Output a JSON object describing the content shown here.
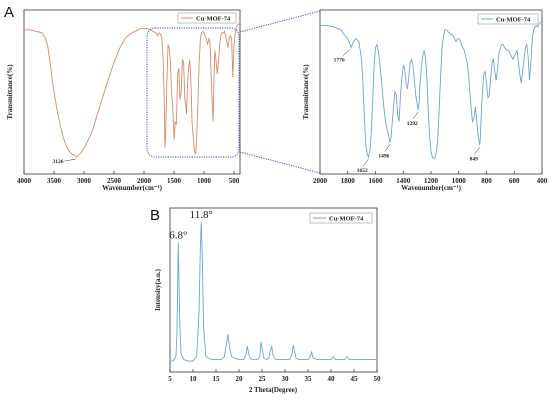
{
  "panels": {
    "a_label": "A",
    "b_label": "B"
  },
  "chart_data": [
    {
      "id": "ftir_full",
      "type": "line",
      "xlabel": "Wavenumber(cm⁻¹)",
      "ylabel": "Transmittance(%)",
      "xlim": [
        4000,
        400
      ],
      "x_reversed": true,
      "xticks": [
        4000,
        3500,
        3000,
        2500,
        2000,
        1500,
        1000,
        500
      ],
      "ylim": [
        0,
        100
      ],
      "grid": false,
      "legend": "top-right",
      "series": [
        {
          "name": "Cu-MOF-74",
          "color": "#d98a6a",
          "x": [
            4000,
            3900,
            3800,
            3700,
            3650,
            3600,
            3550,
            3500,
            3450,
            3400,
            3350,
            3300,
            3250,
            3200,
            3150,
            3126,
            3100,
            3050,
            3000,
            2950,
            2900,
            2850,
            2800,
            2700,
            2600,
            2500,
            2400,
            2300,
            2200,
            2100,
            2050,
            2000,
            1950,
            1900,
            1850,
            1800,
            1776,
            1750,
            1720,
            1700,
            1680,
            1660,
            1652,
            1640,
            1620,
            1600,
            1580,
            1560,
            1540,
            1520,
            1500,
            1496,
            1480,
            1460,
            1440,
            1420,
            1400,
            1380,
            1360,
            1340,
            1320,
            1300,
            1292,
            1280,
            1260,
            1240,
            1220,
            1200,
            1180,
            1160,
            1140,
            1120,
            1100,
            1080,
            1060,
            1040,
            1020,
            1000,
            980,
            960,
            940,
            920,
            900,
            880,
            860,
            849,
            840,
            820,
            800,
            780,
            760,
            740,
            720,
            700,
            680,
            660,
            640,
            620,
            600,
            580,
            560,
            540,
            520,
            500,
            480,
            460,
            440,
            420,
            400
          ],
          "y": [
            92,
            92,
            91,
            90,
            87,
            80,
            65,
            50,
            38,
            28,
            20,
            14,
            10,
            8,
            7,
            6,
            7,
            9,
            12,
            16,
            20,
            25,
            32,
            45,
            58,
            70,
            80,
            87,
            90,
            92,
            93,
            93,
            93,
            92,
            91,
            90,
            88,
            90,
            89,
            86,
            70,
            40,
            12,
            20,
            55,
            82,
            80,
            70,
            50,
            38,
            20,
            18,
            30,
            28,
            62,
            66,
            45,
            50,
            72,
            70,
            45,
            40,
            35,
            50,
            65,
            72,
            60,
            30,
            20,
            10,
            8,
            20,
            45,
            70,
            86,
            90,
            91,
            90,
            88,
            86,
            82,
            86,
            84,
            60,
            40,
            30,
            48,
            78,
            72,
            62,
            70,
            82,
            88,
            90,
            90,
            91,
            88,
            84,
            80,
            86,
            88,
            86,
            60,
            82,
            90,
            94,
            95,
            96,
            96
          ]
        }
      ],
      "annotations": [
        {
          "text": "3126",
          "x": 3126,
          "y": 6
        }
      ]
    },
    {
      "id": "ftir_zoom",
      "type": "line",
      "xlabel": "Wavenumber(cm⁻¹)",
      "ylabel": "Transmittance(%)",
      "xlim": [
        2000,
        400
      ],
      "x_reversed": true,
      "xticks": [
        2000,
        1800,
        1600,
        1400,
        1200,
        1000,
        800,
        600,
        400
      ],
      "ylim": [
        0,
        100
      ],
      "grid": false,
      "legend": "top-right",
      "series": [
        {
          "name": "Cu-MOF-74",
          "color": "#6fa3dc",
          "x": [
            2000,
            1950,
            1900,
            1850,
            1820,
            1800,
            1790,
            1776,
            1760,
            1740,
            1720,
            1700,
            1690,
            1680,
            1670,
            1660,
            1652,
            1640,
            1630,
            1620,
            1610,
            1600,
            1590,
            1580,
            1570,
            1560,
            1550,
            1540,
            1530,
            1520,
            1510,
            1500,
            1496,
            1490,
            1480,
            1470,
            1460,
            1450,
            1440,
            1430,
            1420,
            1410,
            1400,
            1390,
            1380,
            1370,
            1360,
            1350,
            1340,
            1330,
            1320,
            1310,
            1300,
            1292,
            1285,
            1280,
            1270,
            1260,
            1250,
            1240,
            1230,
            1220,
            1210,
            1200,
            1190,
            1180,
            1170,
            1160,
            1150,
            1140,
            1130,
            1120,
            1110,
            1100,
            1090,
            1080,
            1070,
            1060,
            1050,
            1040,
            1030,
            1020,
            1010,
            1000,
            990,
            980,
            970,
            960,
            950,
            940,
            930,
            920,
            910,
            900,
            890,
            880,
            870,
            860,
            850,
            849,
            845,
            840,
            830,
            820,
            810,
            800,
            790,
            780,
            770,
            760,
            750,
            740,
            730,
            720,
            710,
            700,
            690,
            680,
            670,
            660,
            650,
            640,
            630,
            620,
            610,
            600,
            590,
            580,
            570,
            560,
            550,
            540,
            530,
            520,
            510,
            500,
            490,
            480,
            470,
            460,
            450,
            440,
            430,
            420,
            410,
            400
          ],
          "y": [
            95,
            95,
            94,
            92,
            88,
            86,
            84,
            80,
            84,
            86,
            84,
            72,
            55,
            32,
            15,
            8,
            6,
            10,
            22,
            45,
            68,
            80,
            82,
            78,
            70,
            60,
            50,
            40,
            32,
            26,
            22,
            18,
            16,
            18,
            28,
            40,
            50,
            48,
            34,
            30,
            48,
            60,
            68,
            66,
            56,
            52,
            60,
            70,
            72,
            68,
            58,
            48,
            42,
            38,
            44,
            54,
            66,
            74,
            78,
            74,
            60,
            38,
            20,
            10,
            6,
            5,
            6,
            10,
            20,
            40,
            62,
            80,
            88,
            92,
            92,
            91,
            90,
            89,
            89,
            88,
            86,
            84,
            86,
            86,
            85,
            82,
            80,
            78,
            74,
            70,
            62,
            50,
            38,
            30,
            32,
            40,
            30,
            20,
            15,
            14,
            18,
            30,
            48,
            62,
            64,
            56,
            46,
            48,
            60,
            70,
            72,
            64,
            58,
            66,
            76,
            80,
            82,
            82,
            80,
            79,
            78,
            78,
            76,
            74,
            72,
            74,
            76,
            78,
            70,
            62,
            56,
            64,
            72,
            80,
            82,
            74,
            58,
            70,
            86,
            92,
            94,
            95,
            94,
            96,
            97,
            98
          ]
        }
      ],
      "annotations": [
        {
          "text": "1776",
          "x": 1776,
          "y": 80
        },
        {
          "text": "1652",
          "x": 1652,
          "y": 6
        },
        {
          "text": "1496",
          "x": 1496,
          "y": 16
        },
        {
          "text": "1292",
          "x": 1292,
          "y": 38
        },
        {
          "text": "849",
          "x": 849,
          "y": 14
        }
      ]
    },
    {
      "id": "xrd",
      "type": "line",
      "xlabel": "2 Theta(Degree)",
      "ylabel": "Intensity(a.u.)",
      "xlim": [
        5,
        50
      ],
      "xticks": [
        5,
        10,
        15,
        20,
        25,
        30,
        35,
        40,
        45,
        50
      ],
      "ylim": [
        0,
        100
      ],
      "grid": false,
      "legend": "top-right",
      "series": [
        {
          "name": "Cu-MOF-74",
          "color": "#6fa3dc",
          "x": [
            5,
            5.5,
            6,
            6.3,
            6.5,
            6.8,
            7.1,
            7.4,
            8,
            9,
            10,
            10.8,
            11.3,
            11.6,
            11.8,
            12.0,
            12.3,
            12.8,
            14,
            15,
            16,
            16.8,
            17.2,
            17.6,
            18.0,
            18.4,
            19,
            20,
            21,
            21.5,
            21.8,
            22.1,
            22.4,
            23,
            24,
            24.5,
            24.8,
            25.1,
            25.4,
            26,
            26.5,
            26.8,
            27.1,
            27.4,
            28,
            29,
            30,
            31,
            31.5,
            31.8,
            32.1,
            32.4,
            33,
            34,
            35,
            35.5,
            35.8,
            36.1,
            37,
            38,
            39,
            40,
            40.5,
            41,
            42,
            43,
            43.5,
            44,
            45,
            46,
            47,
            48,
            49,
            50
          ],
          "y": [
            2,
            2,
            3,
            6,
            20,
            82,
            30,
            7,
            3,
            2,
            2,
            5,
            35,
            80,
            96,
            75,
            25,
            5,
            3,
            3,
            3,
            5,
            12,
            20,
            10,
            5,
            4,
            3,
            3,
            6,
            12,
            7,
            4,
            3,
            3,
            5,
            15,
            9,
            4,
            3,
            4,
            9,
            12,
            6,
            3,
            3,
            3,
            3,
            6,
            13,
            8,
            4,
            3,
            3,
            3,
            5,
            8,
            4,
            3,
            3,
            3,
            3,
            5,
            3,
            3,
            3,
            5,
            3,
            3,
            3,
            3,
            3,
            3,
            3
          ]
        }
      ],
      "annotations": [
        {
          "text": "6.8°",
          "x": 6.8,
          "y": 82
        },
        {
          "text": "11.8°",
          "x": 11.8,
          "y": 96
        }
      ]
    }
  ]
}
